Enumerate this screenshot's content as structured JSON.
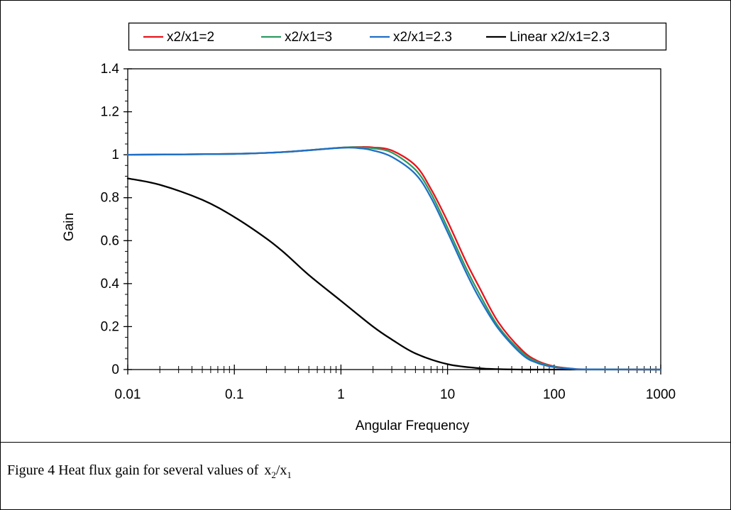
{
  "caption": {
    "prefix": "Figure 4 Heat flux gain for several values of",
    "var_top": "x",
    "var_top_sub": "2",
    "slash": "/",
    "var_bottom": "x",
    "var_bottom_sub": "1"
  },
  "chart_data": {
    "type": "line",
    "title": "",
    "xlabel": "Angular Frequency",
    "ylabel": "Gain",
    "xscale": "log",
    "xlim": [
      0.01,
      1000
    ],
    "ylim": [
      0,
      1.4
    ],
    "xticks": [
      0.01,
      0.1,
      1,
      10,
      100,
      1000
    ],
    "xtick_labels": [
      "0.01",
      "0.1",
      "1",
      "10",
      "100",
      "1000"
    ],
    "yticks": [
      0,
      0.2,
      0.4,
      0.6,
      0.8,
      1,
      1.2,
      1.4
    ],
    "ytick_labels": [
      "0",
      "0.2",
      "0.4",
      "0.6",
      "0.8",
      "1",
      "1.2",
      "1.4"
    ],
    "grid": false,
    "legend_position": "top",
    "series": [
      {
        "name": "x2/x1=2",
        "color": "#e8141c",
        "x": [
          0.01,
          0.1,
          0.3,
          1,
          1.5,
          2,
          3,
          5,
          7,
          10,
          15,
          20,
          30,
          50,
          70,
          100,
          150,
          200,
          1000
        ],
        "y": [
          1.0,
          1.004,
          1.013,
          1.033,
          1.036,
          1.034,
          1.02,
          0.95,
          0.84,
          0.69,
          0.5,
          0.38,
          0.22,
          0.09,
          0.04,
          0.015,
          0.004,
          0.001,
          0.0
        ]
      },
      {
        "name": "x2/x1=3",
        "color": "#2e9a62",
        "x": [
          0.01,
          0.1,
          0.3,
          1,
          1.5,
          2,
          3,
          5,
          7,
          10,
          15,
          20,
          30,
          50,
          70,
          100,
          150,
          200,
          1000
        ],
        "y": [
          1.0,
          1.004,
          1.013,
          1.033,
          1.034,
          1.03,
          1.01,
          0.93,
          0.82,
          0.66,
          0.47,
          0.35,
          0.2,
          0.08,
          0.035,
          0.013,
          0.003,
          0.001,
          0.0
        ]
      },
      {
        "name": "x2/x1=2.3",
        "color": "#1f6fc6",
        "x": [
          0.01,
          0.1,
          0.3,
          1,
          1.5,
          2,
          3,
          5,
          7,
          10,
          15,
          20,
          30,
          50,
          70,
          100,
          150,
          200,
          1000
        ],
        "y": [
          1.0,
          1.004,
          1.013,
          1.032,
          1.03,
          1.02,
          0.99,
          0.91,
          0.8,
          0.64,
          0.45,
          0.33,
          0.19,
          0.07,
          0.03,
          0.011,
          0.003,
          0.001,
          0.0
        ]
      },
      {
        "name": "Linear x2/x1=2.3",
        "color": "#000000",
        "x": [
          0.01,
          0.02,
          0.05,
          0.1,
          0.2,
          0.3,
          0.5,
          1,
          2,
          3,
          5,
          10,
          20,
          30,
          50,
          100,
          1000
        ],
        "y": [
          0.89,
          0.86,
          0.79,
          0.71,
          0.61,
          0.54,
          0.44,
          0.32,
          0.2,
          0.14,
          0.075,
          0.025,
          0.006,
          0.002,
          0.0,
          0.0,
          0.0
        ]
      }
    ]
  }
}
